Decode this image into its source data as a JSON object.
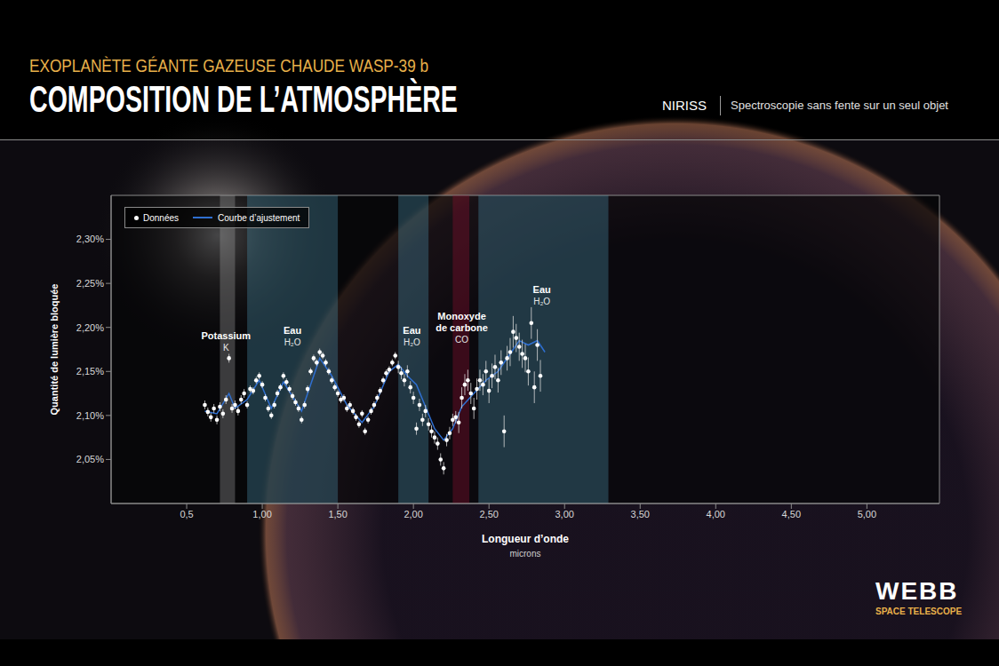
{
  "header": {
    "kicker": "EXOPLANÈTE GÉANTE GAZEUSE CHAUDE WASP-39 b",
    "title": "COMPOSITION DE L’ATMOSPHÈRE",
    "instrument": "NIRISS",
    "method": "Spectroscopie sans fente sur un seul objet"
  },
  "logo": {
    "name": "WEBB",
    "sub": "SPACE TELESCOPE"
  },
  "chart_data": {
    "type": "scatter",
    "x_label": "Longueur d’onde",
    "x_unit": "microns",
    "y_label": "Quantité de lumière bloquée",
    "xlim": [
      0,
      5.48
    ],
    "xticks": [
      {
        "value": 0.5,
        "label": "0,5"
      },
      {
        "value": 1.0,
        "label": "1,00"
      },
      {
        "value": 1.5,
        "label": "1,50"
      },
      {
        "value": 2.0,
        "label": "2,00"
      },
      {
        "value": 2.5,
        "label": "2,50"
      },
      {
        "value": 3.0,
        "label": "3,00"
      },
      {
        "value": 3.5,
        "label": "3,50"
      },
      {
        "value": 4.0,
        "label": "4,00"
      },
      {
        "value": 4.5,
        "label": "4,50"
      },
      {
        "value": 5.0,
        "label": "5,00"
      }
    ],
    "ylim": [
      2.0,
      2.35
    ],
    "yticks": [
      {
        "value": 2.05,
        "label": "2,05%"
      },
      {
        "value": 2.1,
        "label": "2,10%"
      },
      {
        "value": 2.15,
        "label": "2,15%"
      },
      {
        "value": 2.2,
        "label": "2,20%"
      },
      {
        "value": 2.25,
        "label": "2,25%"
      },
      {
        "value": 2.3,
        "label": "2,30%"
      }
    ],
    "grid": false,
    "legend": "upper left",
    "series": [
      {
        "name": "Données",
        "type": "scatter",
        "color": "#ffffff",
        "marker": "circle",
        "x": [
          0.62,
          0.64,
          0.66,
          0.68,
          0.7,
          0.72,
          0.74,
          0.76,
          0.78,
          0.8,
          0.82,
          0.84,
          0.86,
          0.88,
          0.9,
          0.92,
          0.94,
          0.96,
          0.98,
          1.0,
          1.02,
          1.04,
          1.06,
          1.08,
          1.1,
          1.12,
          1.14,
          1.16,
          1.18,
          1.2,
          1.22,
          1.24,
          1.26,
          1.28,
          1.3,
          1.32,
          1.34,
          1.36,
          1.38,
          1.4,
          1.42,
          1.44,
          1.46,
          1.48,
          1.5,
          1.52,
          1.54,
          1.56,
          1.58,
          1.6,
          1.62,
          1.64,
          1.66,
          1.68,
          1.7,
          1.72,
          1.74,
          1.76,
          1.78,
          1.8,
          1.82,
          1.84,
          1.86,
          1.88,
          1.9,
          1.92,
          1.94,
          1.96,
          1.98,
          2.0,
          2.02,
          2.04,
          2.06,
          2.08,
          2.1,
          2.12,
          2.14,
          2.16,
          2.18,
          2.2,
          2.22,
          2.24,
          2.26,
          2.28,
          2.3,
          2.32,
          2.34,
          2.36,
          2.38,
          2.4,
          2.42,
          2.44,
          2.46,
          2.48,
          2.5,
          2.52,
          2.54,
          2.56,
          2.58,
          2.6,
          2.62,
          2.64,
          2.66,
          2.68,
          2.7,
          2.72,
          2.74,
          2.76,
          2.78,
          2.8,
          2.82,
          2.84
        ],
        "values": [
          2.112,
          2.104,
          2.098,
          2.108,
          2.095,
          2.11,
          2.102,
          2.118,
          2.165,
          2.108,
          2.112,
          2.105,
          2.118,
          2.125,
          2.112,
          2.13,
          2.128,
          2.14,
          2.145,
          2.135,
          2.12,
          2.108,
          2.1,
          2.112,
          2.125,
          2.132,
          2.145,
          2.138,
          2.13,
          2.122,
          2.115,
          2.108,
          2.095,
          2.112,
          2.13,
          2.15,
          2.165,
          2.16,
          2.172,
          2.168,
          2.16,
          2.15,
          2.14,
          2.132,
          2.125,
          2.118,
          2.12,
          2.108,
          2.112,
          2.105,
          2.098,
          2.09,
          2.102,
          2.082,
          2.095,
          2.105,
          2.112,
          2.12,
          2.128,
          2.14,
          2.148,
          2.152,
          2.16,
          2.168,
          2.155,
          2.148,
          2.14,
          2.15,
          2.132,
          2.12,
          2.085,
          2.112,
          2.095,
          2.105,
          2.09,
          2.082,
          2.075,
          2.068,
          2.05,
          2.04,
          2.072,
          2.08,
          2.095,
          2.098,
          2.092,
          2.12,
          2.135,
          2.14,
          2.125,
          2.108,
          2.13,
          2.14,
          2.135,
          2.15,
          2.128,
          2.145,
          2.155,
          2.14,
          2.16,
          2.082,
          2.165,
          2.172,
          2.195,
          2.188,
          2.178,
          2.17,
          2.165,
          2.15,
          2.205,
          2.132,
          2.18,
          2.145
        ],
        "errors": [
          0.005,
          0.005,
          0.005,
          0.005,
          0.005,
          0.005,
          0.005,
          0.005,
          0.005,
          0.005,
          0.005,
          0.005,
          0.005,
          0.005,
          0.004,
          0.004,
          0.004,
          0.004,
          0.004,
          0.004,
          0.004,
          0.004,
          0.004,
          0.004,
          0.004,
          0.004,
          0.004,
          0.004,
          0.004,
          0.004,
          0.004,
          0.004,
          0.004,
          0.004,
          0.004,
          0.004,
          0.004,
          0.004,
          0.004,
          0.004,
          0.004,
          0.004,
          0.004,
          0.004,
          0.004,
          0.004,
          0.004,
          0.004,
          0.004,
          0.004,
          0.004,
          0.004,
          0.004,
          0.004,
          0.004,
          0.004,
          0.004,
          0.004,
          0.004,
          0.004,
          0.004,
          0.004,
          0.004,
          0.004,
          0.007,
          0.007,
          0.007,
          0.007,
          0.007,
          0.007,
          0.007,
          0.007,
          0.007,
          0.007,
          0.007,
          0.007,
          0.007,
          0.007,
          0.007,
          0.007,
          0.007,
          0.007,
          0.007,
          0.007,
          0.012,
          0.012,
          0.012,
          0.012,
          0.012,
          0.012,
          0.012,
          0.012,
          0.012,
          0.012,
          0.014,
          0.014,
          0.014,
          0.014,
          0.014,
          0.018,
          0.014,
          0.016,
          0.018,
          0.016,
          0.016,
          0.016,
          0.016,
          0.016,
          0.018,
          0.018,
          0.018,
          0.018
        ]
      },
      {
        "name": "Courbe d’ajustement",
        "type": "line",
        "color": "#2f6fd0",
        "line_style": "solid",
        "x": [
          0.62,
          0.7,
          0.78,
          0.82,
          0.9,
          0.98,
          1.06,
          1.14,
          1.26,
          1.38,
          1.46,
          1.56,
          1.66,
          1.74,
          1.84,
          1.9,
          1.96,
          2.02,
          2.08,
          2.14,
          2.2,
          2.26,
          2.32,
          2.4,
          2.48,
          2.56,
          2.64,
          2.7,
          2.76,
          2.82,
          2.87
        ],
        "values": [
          2.105,
          2.102,
          2.125,
          2.108,
          2.118,
          2.14,
          2.108,
          2.138,
          2.105,
          2.165,
          2.145,
          2.112,
          2.092,
          2.11,
          2.15,
          2.158,
          2.145,
          2.135,
          2.11,
          2.085,
          2.072,
          2.085,
          2.11,
          2.125,
          2.14,
          2.15,
          2.17,
          2.185,
          2.18,
          2.185,
          2.172
        ]
      }
    ],
    "bands": [
      {
        "label": "Potassium",
        "formula": "K",
        "x": [
          0.72,
          0.82
        ],
        "color": "#a8a8a8",
        "label_x": 0.76,
        "label_y": 2.197
      },
      {
        "label": "Eau",
        "formula": "H₂O",
        "x": [
          0.9,
          1.5
        ],
        "color": "#4f98b3",
        "label_x": 1.2,
        "label_y": 2.203
      },
      {
        "label": "Eau",
        "formula": "H₂O",
        "x": [
          1.9,
          2.1
        ],
        "color": "#4f98b3",
        "label_x": 1.99,
        "label_y": 2.203
      },
      {
        "label": "Monoxyde de carbone",
        "formula": "CO",
        "x": [
          2.26,
          2.37
        ],
        "color": "#9a1035",
        "label_x": 2.32,
        "label_y": 2.219
      },
      {
        "label": "Eau",
        "formula": "H₂O",
        "x": [
          2.43,
          3.29
        ],
        "color": "#4f98b3",
        "label_x": 2.85,
        "label_y": 2.249
      }
    ]
  }
}
